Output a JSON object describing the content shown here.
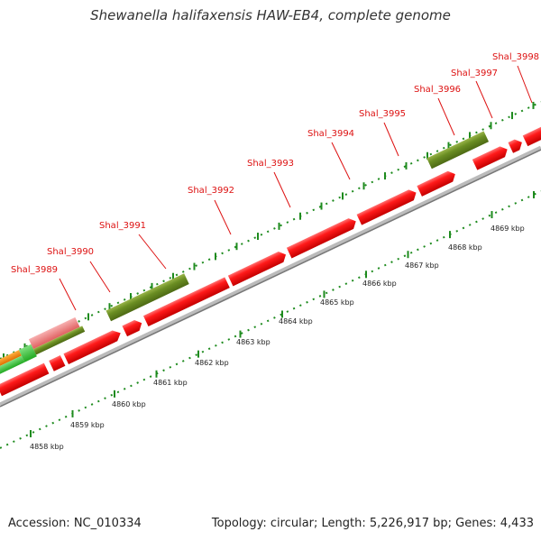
{
  "title": "Shewanella halifaxensis HAW-EB4, complete genome",
  "footer": {
    "accession": "Accession: NC_010334",
    "info": "Topology: circular; Length: 5,226,917 bp; Genes: 4,433"
  },
  "scale_labels": [
    "4858 kbp",
    "4859 kbp",
    "4860 kbp",
    "4861 kbp",
    "4862 kbp",
    "4863 kbp",
    "4864 kbp",
    "4865 kbp",
    "4866 kbp",
    "4867 kbp",
    "4868 kbp",
    "4869 kbp"
  ],
  "gene_labels": [
    "Shal_3989",
    "Shal_3990",
    "Shal_3991",
    "Shal_3992",
    "Shal_3993",
    "Shal_3994",
    "Shal_3995",
    "Shal_3996",
    "Shal_3997",
    "Shal_3998"
  ],
  "colors": {
    "gene_red": "#ff1a1a",
    "gene_olive": "#6b8e23",
    "gene_pink": "#f08080",
    "gene_orange": "#ff8c00",
    "gene_green": "#33cc33",
    "backbone": "#888888",
    "tick_green": "#1e8b1e",
    "label_red": "#dd1111"
  }
}
